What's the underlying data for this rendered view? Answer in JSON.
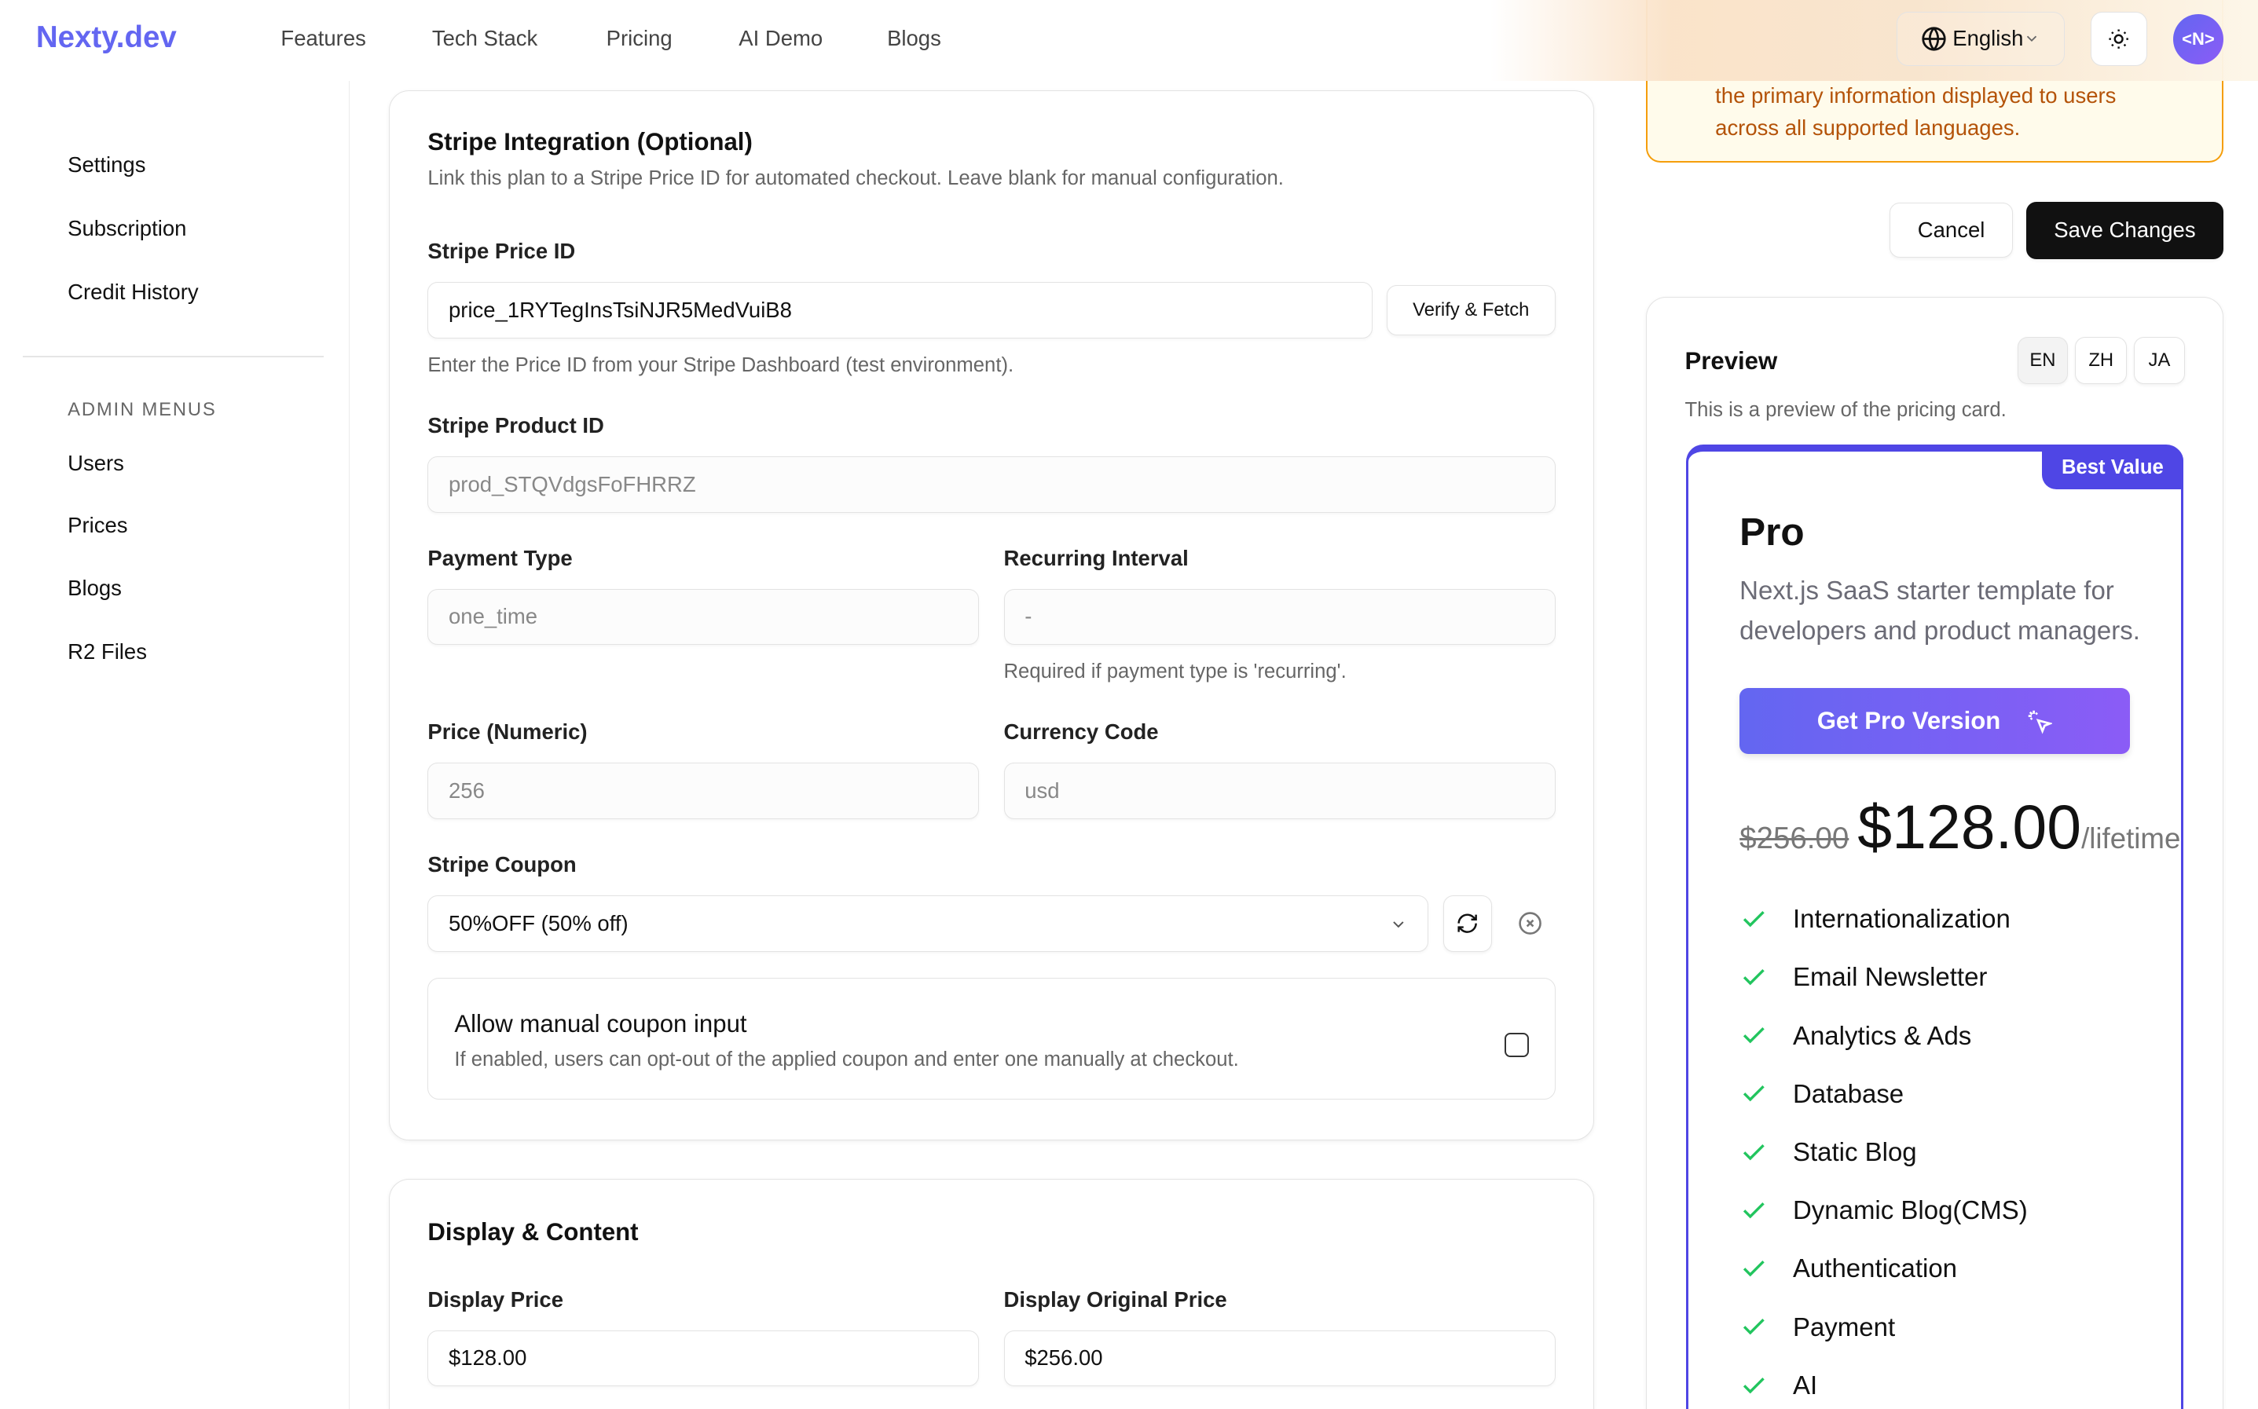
{
  "header": {
    "logo": "Nexty.dev",
    "nav": [
      "Features",
      "Tech Stack",
      "Pricing",
      "AI Demo",
      "Blogs"
    ],
    "language": "English",
    "avatar": "<N>",
    "icons": {
      "language": "globe-icon",
      "theme": "sun-icon"
    }
  },
  "sidebar": {
    "items": [
      "Settings",
      "Subscription",
      "Credit History"
    ],
    "admin_heading": "ADMIN MENUS",
    "admin_items": [
      "Users",
      "Prices",
      "Blogs",
      "R2 Files"
    ]
  },
  "stripe": {
    "title": "Stripe Integration (Optional)",
    "description": "Link this plan to a Stripe Price ID for automated checkout. Leave blank for manual configuration.",
    "price_id_label": "Stripe Price ID",
    "price_id_value": "price_1RYTegInsTsiNJR5MedVuiB8",
    "verify_button": "Verify & Fetch",
    "price_id_help": "Enter the Price ID from your Stripe Dashboard (test environment).",
    "product_id_label": "Stripe Product ID",
    "product_id_value": "prod_STQVdgsFoFHRRZ",
    "payment_type_label": "Payment Type",
    "payment_type_value": "one_time",
    "interval_label": "Recurring Interval",
    "interval_value": "-",
    "interval_help": "Required if payment type is 'recurring'.",
    "price_label": "Price (Numeric)",
    "price_value": "256",
    "currency_label": "Currency Code",
    "currency_value": "usd",
    "coupon_label": "Stripe Coupon",
    "coupon_value": "50%OFF (50% off)",
    "manual_title": "Allow manual coupon input",
    "manual_desc": "If enabled, users can opt-out of the applied coupon and enter one manually at checkout.",
    "manual_checked": false
  },
  "display": {
    "title": "Display & Content",
    "price_label": "Display Price",
    "price_value": "$128.00",
    "orig_label": "Display Original Price",
    "orig_value": "$256.00"
  },
  "warning": {
    "line1": "the primary information displayed to users",
    "line2": "across all supported languages."
  },
  "actions": {
    "cancel": "Cancel",
    "save": "Save Changes"
  },
  "preview": {
    "title": "Preview",
    "langs": [
      "EN",
      "ZH",
      "JA"
    ],
    "active_lang": "EN",
    "description": "This is a preview of the pricing card.",
    "card": {
      "badge": "Best Value",
      "name": "Pro",
      "description": "Next.js SaaS starter template for developers and product managers.",
      "button": "Get Pro Version",
      "original_price": "$256.00",
      "price": "$128.00",
      "unit": "/lifetime",
      "features": [
        "Internationalization",
        "Email Newsletter",
        "Analytics & Ads",
        "Database",
        "Static Blog",
        "Dynamic Blog(CMS)",
        "Authentication",
        "Payment",
        "AI"
      ]
    }
  },
  "colors": {
    "brand": "#6366f1",
    "accent": "#4f46e5",
    "check": "#22c55e",
    "warning_text": "#b45309",
    "warning_border": "#f59e0b"
  }
}
